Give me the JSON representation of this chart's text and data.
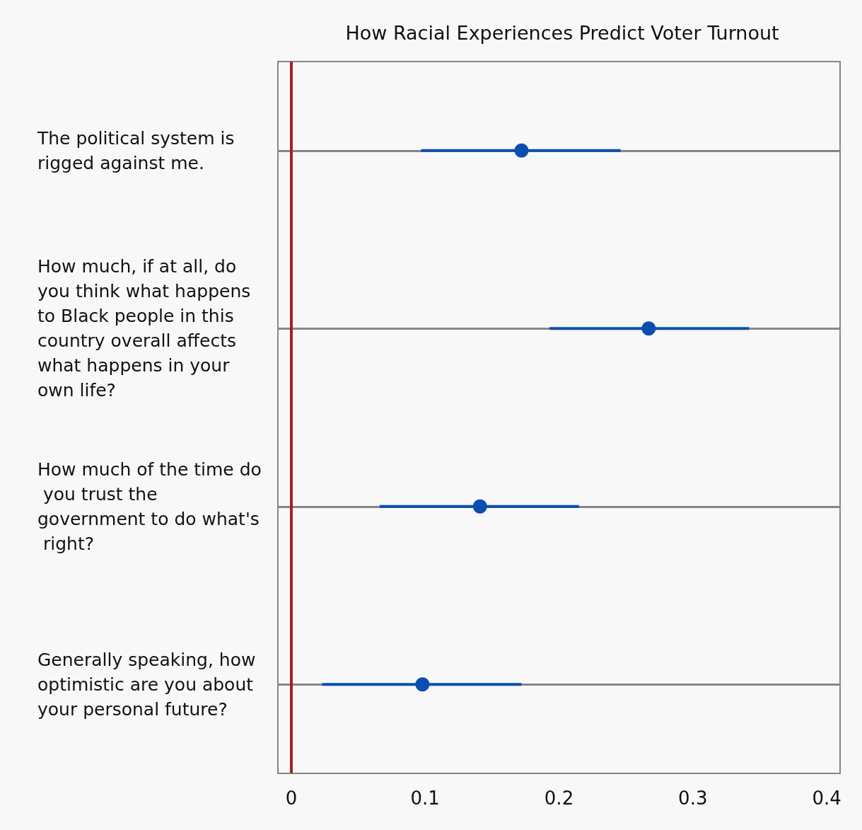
{
  "chart_data": {
    "type": "scatter",
    "title": "How Racial Experiences Predict Voter Turnout",
    "categories": [
      "The political system is rigged against me.",
      "How much, if at all, do you think what happens to Black people in this country overall affects what happens in your own life?",
      "How much of the time do you trust the government to do what's right?",
      "Generally speaking, how optimistic are you about your personal future?"
    ],
    "orientation": "horizontal",
    "values": [
      0.172,
      0.267,
      0.141,
      0.098
    ],
    "errors": [
      [
        0.097,
        0.246
      ],
      [
        0.193,
        0.342
      ],
      [
        0.066,
        0.215
      ],
      [
        0.023,
        0.172
      ]
    ],
    "color": "#0a4fb0",
    "marker": "circle",
    "xlim": [
      -0.01,
      0.41
    ],
    "xticks": [
      0,
      0.1,
      0.2,
      0.3,
      0.4
    ],
    "grid": "y",
    "ref_lines": [
      {
        "axis": "x",
        "value": 0,
        "color": "#a0231b"
      }
    ]
  }
}
